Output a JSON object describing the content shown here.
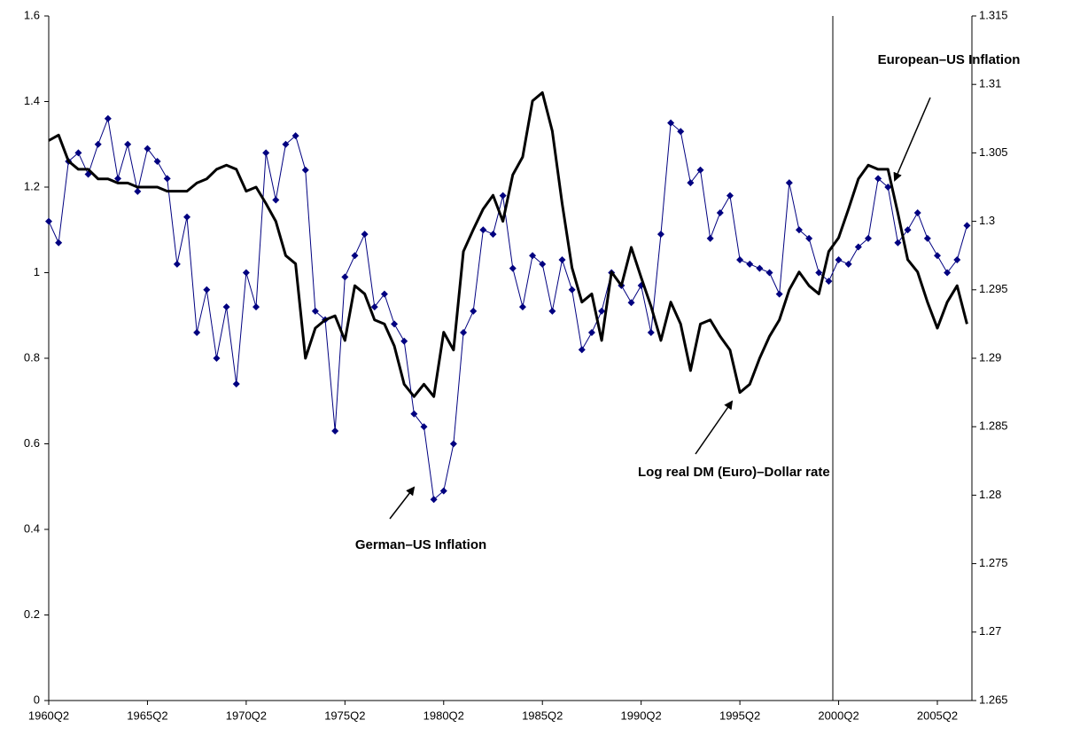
{
  "chart_data": {
    "type": "line",
    "x": [
      1960.25,
      1960.75,
      1961.25,
      1961.75,
      1962.25,
      1962.75,
      1963.25,
      1963.75,
      1964.25,
      1964.75,
      1965.25,
      1965.75,
      1966.25,
      1966.75,
      1967.25,
      1967.75,
      1968.25,
      1968.75,
      1969.25,
      1969.75,
      1970.25,
      1970.75,
      1971.25,
      1971.75,
      1972.25,
      1972.75,
      1973.25,
      1973.75,
      1974.25,
      1974.75,
      1975.25,
      1975.75,
      1976.25,
      1976.75,
      1977.25,
      1977.75,
      1978.25,
      1978.75,
      1979.25,
      1979.75,
      1980.25,
      1980.75,
      1981.25,
      1981.75,
      1982.25,
      1982.75,
      1983.25,
      1983.75,
      1984.25,
      1984.75,
      1985.25,
      1985.75,
      1986.25,
      1986.75,
      1987.25,
      1987.75,
      1988.25,
      1988.75,
      1989.25,
      1989.75,
      1990.25,
      1990.75,
      1991.25,
      1991.75,
      1992.25,
      1992.75,
      1993.25,
      1993.75,
      1994.25,
      1994.75,
      1995.25,
      1995.75,
      1996.25,
      1996.75,
      1997.25,
      1997.75,
      1998.25,
      1998.75,
      1999.25,
      1999.75,
      2000.25,
      2000.75,
      2001.25,
      2001.75,
      2002.25,
      2002.75,
      2003.25,
      2003.75,
      2004.25,
      2004.75,
      2005.25,
      2005.75,
      2006.25,
      2006.75
    ],
    "series": [
      {
        "color": "#000080",
        "marker": "diamond",
        "values": [
          1.12,
          1.07,
          1.26,
          1.28,
          1.23,
          1.3,
          1.36,
          1.22,
          1.3,
          1.19,
          1.29,
          1.26,
          1.22,
          1.02,
          1.13,
          0.86,
          0.96,
          0.8,
          0.92,
          0.74,
          1.0,
          0.92,
          1.28,
          1.17,
          1.3,
          1.32,
          1.24,
          0.91,
          0.89,
          0.63,
          0.99,
          1.04,
          1.09,
          0.92,
          0.95,
          0.88,
          0.84,
          0.67,
          0.64,
          0.47,
          0.49,
          0.6,
          0.86,
          0.91,
          1.1,
          1.09,
          1.18,
          1.01,
          0.92,
          1.04,
          1.02,
          0.91,
          1.03,
          0.96,
          0.82,
          0.86,
          0.91,
          1.0,
          0.97,
          0.93,
          0.97,
          0.86,
          1.09,
          1.35,
          1.33,
          1.21,
          1.24,
          1.08,
          1.14,
          1.18,
          1.03,
          1.02,
          1.01,
          1.0,
          0.95,
          1.21,
          1.1,
          1.08,
          1.0,
          0.98,
          1.03,
          1.02,
          1.06,
          1.08,
          1.22,
          1.2,
          1.07,
          1.1,
          1.14,
          1.08,
          1.04,
          1.0,
          1.03,
          1.11
        ]
      },
      {
        "color": "#000000",
        "axis": "y2",
        "values": [
          1.3059,
          1.3063,
          1.3044,
          1.3038,
          1.3038,
          1.3031,
          1.3031,
          1.3028,
          1.3028,
          1.3025,
          1.3025,
          1.3025,
          1.3022,
          1.3022,
          1.3022,
          1.3028,
          1.3031,
          1.3038,
          1.3041,
          1.3038,
          1.3022,
          1.3025,
          1.3013,
          1.3,
          1.2975,
          1.2969,
          1.29,
          1.2922,
          1.2928,
          1.2931,
          1.2913,
          1.2953,
          1.2947,
          1.2928,
          1.2925,
          1.2909,
          1.2881,
          1.2872,
          1.2881,
          1.2872,
          1.2919,
          1.2906,
          1.2978,
          1.2994,
          1.3009,
          1.3019,
          1.3,
          1.3034,
          1.3047,
          1.3088,
          1.3094,
          1.3066,
          1.3013,
          1.2966,
          1.2941,
          1.2947,
          1.2913,
          1.2963,
          1.2953,
          1.2981,
          1.2959,
          1.2938,
          1.2913,
          1.2941,
          1.2925,
          1.2891,
          1.2925,
          1.2928,
          1.2916,
          1.2906,
          1.2875,
          1.2881,
          1.29,
          1.2916,
          1.2928,
          1.295,
          1.2963,
          1.2953,
          1.2947,
          1.2978,
          1.2988,
          1.3009,
          1.3031,
          1.3041,
          1.3038,
          1.3038,
          1.3006,
          1.2972,
          1.2963,
          1.2941,
          1.2922,
          1.2941,
          1.2953,
          1.2925
        ]
      }
    ],
    "xlim": [
      1960.25,
      2007.0
    ],
    "xticks": [
      {
        "value": 1960.25,
        "label": "1960Q2"
      },
      {
        "value": 1965.25,
        "label": "1965Q2"
      },
      {
        "value": 1970.25,
        "label": "1970Q2"
      },
      {
        "value": 1975.25,
        "label": "1975Q2"
      },
      {
        "value": 1980.25,
        "label": "1980Q2"
      },
      {
        "value": 1985.25,
        "label": "1985Q2"
      },
      {
        "value": 1990.25,
        "label": "1990Q2"
      },
      {
        "value": 1995.25,
        "label": "1995Q2"
      },
      {
        "value": 2000.25,
        "label": "2000Q2"
      },
      {
        "value": 2005.25,
        "label": "2005Q2"
      }
    ],
    "ylim": [
      0,
      1.6
    ],
    "yticks": [
      0,
      0.2,
      0.4,
      0.6,
      0.8,
      1,
      1.2,
      1.4,
      1.6
    ],
    "y2lim": [
      1.265,
      1.315
    ],
    "y2ticks": [
      1.265,
      1.27,
      1.275,
      1.28,
      1.285,
      1.29,
      1.295,
      1.3,
      1.305,
      1.31,
      1.315
    ],
    "annotations": [
      {
        "text": "European–US Inflation"
      },
      {
        "text": "German–US Inflation"
      },
      {
        "text": "Log real DM (Euro)–Dollar rate"
      }
    ]
  }
}
